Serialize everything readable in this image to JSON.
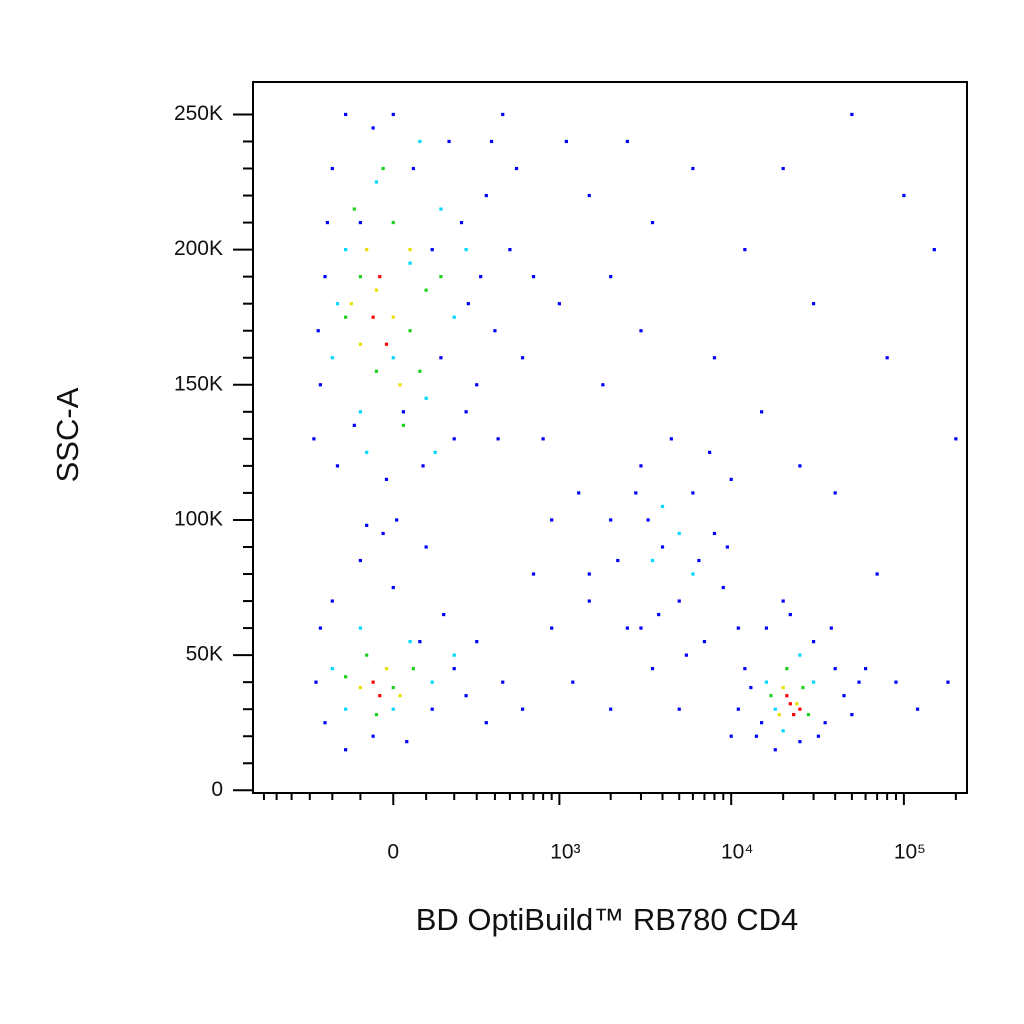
{
  "chart_data": {
    "type": "scatter",
    "x_label": "BD OptiBuild™ RB780 CD4",
    "y_label": "SSC-A",
    "x_scale": "arcsinh",
    "xlim": [
      -700,
      232000
    ],
    "ylim": [
      -1000,
      262000
    ],
    "xticks": [
      0,
      {
        "value": 1000,
        "label": "10³"
      },
      {
        "value": 10000,
        "label": "10⁴"
      },
      {
        "value": 100000,
        "label": "10⁵"
      }
    ],
    "xticks_minor": [
      -600,
      -500,
      -400,
      -300,
      -200,
      -100,
      100,
      200,
      300,
      400,
      500,
      600,
      700,
      800,
      900,
      2000,
      3000,
      4000,
      5000,
      6000,
      7000,
      8000,
      9000,
      20000,
      30000,
      40000,
      50000,
      60000,
      70000,
      80000,
      90000,
      200000
    ],
    "yticks": [
      0,
      {
        "value": 50000,
        "label": "50K"
      },
      {
        "value": 100000,
        "label": "100K"
      },
      {
        "value": 150000,
        "label": "150K"
      },
      {
        "value": 200000,
        "label": "200K"
      },
      {
        "value": 250000,
        "label": "250K"
      }
    ],
    "yticks_minor": [
      10000,
      20000,
      30000,
      40000,
      60000,
      70000,
      80000,
      90000,
      110000,
      120000,
      130000,
      140000,
      160000,
      170000,
      180000,
      190000,
      210000,
      220000,
      230000,
      240000
    ],
    "series": [
      {
        "color": "#0000ff",
        "x": [
          -250,
          -230,
          -200,
          -180,
          -260,
          -150,
          -120,
          -100,
          -60,
          -20,
          0,
          30,
          60,
          90,
          120,
          150,
          180,
          200,
          230,
          260,
          300,
          350,
          400,
          450,
          500,
          600,
          -220,
          -280,
          10,
          -80,
          250,
          320,
          380,
          420,
          550,
          -270,
          -250,
          -230,
          -200,
          -150,
          -100,
          -60,
          0,
          40,
          80,
          120,
          160,
          200,
          250,
          300,
          350,
          450,
          600,
          -30,
          100,
          700,
          900,
          1200,
          800,
          1000,
          1500,
          2000,
          1800,
          2500,
          3000,
          1300,
          900,
          700,
          1100,
          3500,
          6000,
          8000,
          12000,
          15000,
          20000,
          30000,
          50000,
          80000,
          150000,
          200000,
          100000,
          40000,
          70000,
          120000,
          180000,
          90000,
          60000,
          25000,
          10000,
          5000,
          2000,
          3000,
          1500,
          1500,
          2000,
          2500,
          3000,
          3500,
          4000,
          4500,
          5000,
          6000,
          7000,
          8000,
          9000,
          10000,
          11000,
          2200,
          2800,
          3800,
          6500,
          5500,
          7500,
          3300,
          9500,
          11000,
          12000,
          14000,
          16000,
          18000,
          20000,
          25000,
          30000,
          35000,
          40000,
          45000,
          50000,
          13000,
          38000,
          22000,
          15000,
          32000,
          55000
        ],
        "values": [
          150000,
          190000,
          230000,
          120000,
          170000,
          250000,
          135000,
          210000,
          245000,
          115000,
          250000,
          140000,
          230000,
          120000,
          200000,
          160000,
          240000,
          130000,
          210000,
          180000,
          150000,
          220000,
          170000,
          250000,
          200000,
          160000,
          210000,
          130000,
          100000,
          98000,
          140000,
          190000,
          240000,
          130000,
          230000,
          40000,
          60000,
          25000,
          70000,
          15000,
          85000,
          20000,
          75000,
          18000,
          55000,
          30000,
          65000,
          45000,
          35000,
          55000,
          25000,
          40000,
          30000,
          95000,
          90000,
          80000,
          60000,
          40000,
          130000,
          180000,
          220000,
          190000,
          150000,
          240000,
          170000,
          110000,
          100000,
          190000,
          240000,
          210000,
          230000,
          160000,
          200000,
          140000,
          230000,
          180000,
          250000,
          160000,
          200000,
          130000,
          220000,
          110000,
          80000,
          30000,
          40000,
          40000,
          45000,
          120000,
          20000,
          30000,
          30000,
          60000,
          70000,
          80000,
          100000,
          60000,
          120000,
          45000,
          90000,
          130000,
          70000,
          110000,
          55000,
          95000,
          75000,
          115000,
          60000,
          85000,
          110000,
          65000,
          85000,
          50000,
          125000,
          100000,
          90000,
          30000,
          45000,
          20000,
          60000,
          15000,
          70000,
          18000,
          55000,
          25000,
          45000,
          35000,
          28000,
          38000,
          60000,
          65000,
          25000,
          20000,
          40000
        ]
      },
      {
        "color": "#00d8ff",
        "x": [
          -200,
          -150,
          -100,
          -50,
          0,
          50,
          100,
          150,
          200,
          -180,
          80,
          -80,
          130,
          250,
          -200,
          -100,
          0,
          50,
          120,
          -150,
          200,
          3500,
          5000,
          6000,
          4000,
          16000,
          18000,
          30000,
          25000,
          20000
        ],
        "values": [
          160000,
          200000,
          140000,
          225000,
          160000,
          195000,
          145000,
          215000,
          175000,
          180000,
          240000,
          125000,
          125000,
          200000,
          45000,
          60000,
          30000,
          55000,
          40000,
          30000,
          50000,
          85000,
          95000,
          80000,
          105000,
          40000,
          30000,
          40000,
          50000,
          22000
        ]
      },
      {
        "color": "#20d020",
        "x": [
          -150,
          -100,
          -50,
          0,
          50,
          100,
          -120,
          30,
          150,
          -30,
          80,
          -150,
          -80,
          0,
          60,
          -50,
          17000,
          26000,
          21000,
          28000
        ],
        "values": [
          175000,
          190000,
          155000,
          210000,
          170000,
          185000,
          215000,
          135000,
          190000,
          230000,
          155000,
          42000,
          50000,
          38000,
          45000,
          28000,
          35000,
          38000,
          45000,
          28000
        ]
      },
      {
        "color": "#e8e000",
        "x": [
          -100,
          -50,
          0,
          50,
          -80,
          20,
          -130,
          -100,
          -20,
          20,
          20000,
          24000,
          19000
        ],
        "values": [
          165000,
          185000,
          175000,
          200000,
          200000,
          150000,
          180000,
          38000,
          45000,
          35000,
          38000,
          32000,
          28000
        ]
      },
      {
        "color": "#ff0000",
        "x": [
          -60,
          -20,
          -40,
          -60,
          -40,
          22000,
          23000,
          21000,
          25000
        ],
        "values": [
          175000,
          165000,
          190000,
          40000,
          35000,
          32000,
          28000,
          35000,
          30000
        ]
      }
    ]
  }
}
